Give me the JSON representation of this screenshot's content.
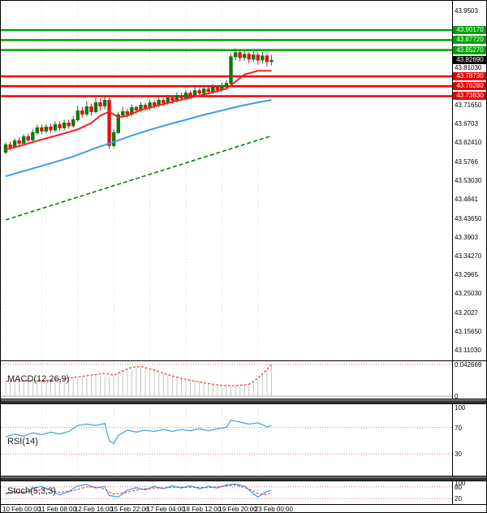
{
  "axis": {
    "price_ticks": [
      {
        "v": 43.9503,
        "label": "43.9503"
      },
      {
        "v": 43.8103,
        "label": "43.81030"
      },
      {
        "v": 43.7165,
        "label": "43.71650"
      },
      {
        "v": 43.6703,
        "label": "43.6703"
      },
      {
        "v": 43.6241,
        "label": "43.62410"
      },
      {
        "v": 43.5766,
        "label": "43.5766"
      },
      {
        "v": 43.5303,
        "label": "43.53030"
      },
      {
        "v": 43.4841,
        "label": "43.4841"
      },
      {
        "v": 43.4365,
        "label": "43.43650"
      },
      {
        "v": 43.3903,
        "label": "43.3903"
      },
      {
        "v": 43.3427,
        "label": "43.34270"
      },
      {
        "v": 43.2965,
        "label": "43.2965"
      },
      {
        "v": 43.2503,
        "label": "43.25030"
      },
      {
        "v": 43.2027,
        "label": "43.2027"
      },
      {
        "v": 43.1565,
        "label": "43.15650"
      },
      {
        "v": 43.1103,
        "label": "43.11030"
      }
    ],
    "date_labels": [
      "10 Feb 00:00",
      "11 Feb 08:00",
      "12 Feb 16:00",
      "15 Feb 22:06",
      "17 Feb 04:00",
      "18 Feb 12:00",
      "19 Feb 20:00",
      "23 Feb 00:00"
    ]
  },
  "levels": {
    "resistance": [
      {
        "v": 43.9017,
        "label": "43.90170"
      },
      {
        "v": 43.8772,
        "label": "43.87720"
      },
      {
        "v": 43.8527,
        "label": "43.85270"
      }
    ],
    "support": [
      {
        "v": 43.7873,
        "label": "43.78730"
      },
      {
        "v": 43.7628,
        "label": "43.76280"
      },
      {
        "v": 43.7383,
        "label": "43.73830"
      }
    ],
    "current_price": {
      "v": 43.8269,
      "label": "43.82690"
    }
  },
  "chart_data": {
    "type": "candlestick",
    "title": "",
    "price_range": {
      "min": 43.1103,
      "max": 43.9503
    },
    "x_labels": [
      "10 Feb 00:00",
      "11 Feb 08:00",
      "12 Feb 16:00",
      "15 Feb 22:06",
      "17 Feb 04:00",
      "18 Feb 12:00",
      "19 Feb 20:00",
      "23 Feb 00:00"
    ],
    "candles": [
      [
        43.6,
        43.624,
        43.594,
        43.618
      ],
      [
        43.618,
        43.626,
        43.604,
        43.612
      ],
      [
        43.612,
        43.634,
        43.608,
        43.628
      ],
      [
        43.628,
        43.636,
        43.616,
        43.622
      ],
      [
        43.622,
        43.645,
        43.618,
        43.638
      ],
      [
        43.638,
        43.646,
        43.624,
        43.63
      ],
      [
        43.63,
        43.656,
        43.626,
        43.648
      ],
      [
        43.648,
        43.668,
        43.642,
        43.66
      ],
      [
        43.66,
        43.668,
        43.644,
        43.652
      ],
      [
        43.652,
        43.67,
        43.646,
        43.662
      ],
      [
        43.662,
        43.67,
        43.648,
        43.655
      ],
      [
        43.655,
        43.676,
        43.65,
        43.668
      ],
      [
        43.668,
        43.676,
        43.652,
        43.66
      ],
      [
        43.66,
        43.68,
        43.654,
        43.672
      ],
      [
        43.672,
        43.68,
        43.658,
        43.665
      ],
      [
        43.665,
        43.69,
        43.66,
        43.68
      ],
      [
        43.68,
        43.715,
        43.675,
        43.702
      ],
      [
        43.702,
        43.712,
        43.685,
        43.694
      ],
      [
        43.694,
        43.726,
        43.688,
        43.712
      ],
      [
        43.712,
        43.72,
        43.69,
        43.7
      ],
      [
        43.7,
        43.734,
        43.695,
        43.722
      ],
      [
        43.722,
        43.732,
        43.702,
        43.714
      ],
      [
        43.714,
        43.736,
        43.706,
        43.728
      ],
      [
        43.728,
        43.734,
        43.608,
        43.616
      ],
      [
        43.616,
        43.656,
        43.61,
        43.648
      ],
      [
        43.648,
        43.7,
        43.644,
        43.692
      ],
      [
        43.692,
        43.712,
        43.684,
        43.7
      ],
      [
        43.7,
        43.708,
        43.686,
        43.694
      ],
      [
        43.694,
        43.718,
        43.688,
        43.71
      ],
      [
        43.71,
        43.716,
        43.696,
        43.704
      ],
      [
        43.704,
        43.724,
        43.698,
        43.716
      ],
      [
        43.716,
        43.722,
        43.702,
        43.71
      ],
      [
        43.71,
        43.73,
        43.704,
        43.722
      ],
      [
        43.722,
        43.728,
        43.708,
        43.716
      ],
      [
        43.716,
        43.736,
        43.71,
        43.728
      ],
      [
        43.728,
        43.734,
        43.714,
        43.722
      ],
      [
        43.722,
        43.742,
        43.716,
        43.734
      ],
      [
        43.734,
        43.74,
        43.72,
        43.728
      ],
      [
        43.728,
        43.748,
        43.722,
        43.74
      ],
      [
        43.74,
        43.746,
        43.726,
        43.734
      ],
      [
        43.734,
        43.754,
        43.728,
        43.746
      ],
      [
        43.746,
        43.752,
        43.732,
        43.74
      ],
      [
        43.74,
        43.76,
        43.734,
        43.752
      ],
      [
        43.752,
        43.758,
        43.738,
        43.746
      ],
      [
        43.746,
        43.764,
        43.74,
        43.756
      ],
      [
        43.756,
        43.762,
        43.742,
        43.75
      ],
      [
        43.75,
        43.768,
        43.744,
        43.76
      ],
      [
        43.76,
        43.766,
        43.746,
        43.754
      ],
      [
        43.754,
        43.772,
        43.748,
        43.764
      ],
      [
        43.764,
        43.778,
        43.756,
        43.77
      ],
      [
        43.77,
        43.844,
        43.766,
        43.836
      ],
      [
        43.836,
        43.856,
        43.828,
        43.846
      ],
      [
        43.846,
        43.852,
        43.824,
        43.834
      ],
      [
        43.834,
        43.85,
        43.826,
        43.842
      ],
      [
        43.842,
        43.848,
        43.82,
        43.83
      ],
      [
        43.83,
        43.85,
        43.822,
        43.84
      ],
      [
        43.84,
        43.846,
        43.816,
        43.828
      ],
      [
        43.828,
        43.848,
        43.82,
        43.838
      ],
      [
        43.838,
        43.844,
        43.812,
        43.824
      ],
      [
        43.824,
        43.84,
        43.814,
        43.827
      ]
    ],
    "overlays": {
      "ma_fast": {
        "points": [
          [
            0,
            43.606
          ],
          [
            4,
            43.618
          ],
          [
            8,
            43.631
          ],
          [
            12,
            43.643
          ],
          [
            16,
            43.656
          ],
          [
            19,
            43.672
          ],
          [
            21,
            43.69
          ],
          [
            23,
            43.7
          ],
          [
            25,
            43.686
          ],
          [
            27,
            43.69
          ],
          [
            30,
            43.704
          ],
          [
            34,
            43.716
          ],
          [
            38,
            43.727
          ],
          [
            42,
            43.737
          ],
          [
            46,
            43.748
          ],
          [
            49,
            43.757
          ],
          [
            51,
            43.774
          ],
          [
            53,
            43.792
          ],
          [
            56,
            43.801
          ],
          [
            59,
            43.801
          ]
        ]
      },
      "ma_slow": {
        "points": [
          [
            0,
            43.54
          ],
          [
            5,
            43.556
          ],
          [
            10,
            43.572
          ],
          [
            15,
            43.589
          ],
          [
            20,
            43.61
          ],
          [
            25,
            43.629
          ],
          [
            28,
            43.641
          ],
          [
            32,
            43.655
          ],
          [
            36,
            43.668
          ],
          [
            40,
            43.68
          ],
          [
            44,
            43.692
          ],
          [
            48,
            43.703
          ],
          [
            52,
            43.714
          ],
          [
            56,
            43.723
          ],
          [
            59,
            43.729
          ]
        ]
      },
      "trendline": {
        "points": [
          [
            0,
            43.432
          ],
          [
            59,
            43.64
          ]
        ]
      }
    },
    "indicators": {
      "macd": {
        "label": "MACD(12,26,9)",
        "top_label": "0.042669",
        "bottom_label": "0",
        "range": {
          "min": 0,
          "max": 0.0427
        },
        "signal_points": [
          [
            0,
            0.02
          ],
          [
            4,
            0.0205
          ],
          [
            8,
            0.021
          ],
          [
            12,
            0.0225
          ],
          [
            16,
            0.026
          ],
          [
            20,
            0.029
          ],
          [
            22,
            0.031
          ],
          [
            24,
            0.028
          ],
          [
            26,
            0.034
          ],
          [
            28,
            0.039
          ],
          [
            30,
            0.04
          ],
          [
            33,
            0.035
          ],
          [
            36,
            0.029
          ],
          [
            39,
            0.024
          ],
          [
            42,
            0.02
          ],
          [
            45,
            0.017
          ],
          [
            48,
            0.0145
          ],
          [
            51,
            0.014
          ],
          [
            54,
            0.016
          ],
          [
            56,
            0.024
          ],
          [
            58,
            0.036
          ],
          [
            59,
            0.0425
          ]
        ],
        "hist_points": [
          [
            0,
            0.019
          ],
          [
            5,
            0.02
          ],
          [
            10,
            0.021
          ],
          [
            15,
            0.024
          ],
          [
            20,
            0.028
          ],
          [
            23,
            0.026
          ],
          [
            27,
            0.036
          ],
          [
            30,
            0.039
          ],
          [
            34,
            0.032
          ],
          [
            38,
            0.026
          ],
          [
            42,
            0.021
          ],
          [
            46,
            0.016
          ],
          [
            50,
            0.0135
          ],
          [
            53,
            0.015
          ],
          [
            56,
            0.022
          ],
          [
            59,
            0.041
          ]
        ]
      },
      "rsi": {
        "label": "RSI(14)",
        "ticks": [
          100,
          70,
          30
        ],
        "range": {
          "min": 0,
          "max": 100
        },
        "points": [
          [
            0,
            56
          ],
          [
            2,
            60
          ],
          [
            4,
            57
          ],
          [
            6,
            62
          ],
          [
            8,
            59
          ],
          [
            10,
            63
          ],
          [
            12,
            60
          ],
          [
            14,
            64
          ],
          [
            16,
            73
          ],
          [
            18,
            75
          ],
          [
            20,
            73
          ],
          [
            22,
            76
          ],
          [
            23,
            50
          ],
          [
            24,
            46
          ],
          [
            25,
            58
          ],
          [
            27,
            66
          ],
          [
            29,
            63
          ],
          [
            31,
            66
          ],
          [
            33,
            64
          ],
          [
            35,
            67
          ],
          [
            37,
            64
          ],
          [
            39,
            67
          ],
          [
            41,
            65
          ],
          [
            43,
            68
          ],
          [
            45,
            65
          ],
          [
            47,
            68
          ],
          [
            49,
            70
          ],
          [
            50,
            81
          ],
          [
            52,
            78
          ],
          [
            54,
            75
          ],
          [
            56,
            77
          ],
          [
            58,
            71
          ],
          [
            59,
            73
          ]
        ]
      },
      "stoch": {
        "label": "Stoch(5,3,3)",
        "ticks": [
          100,
          80,
          20
        ],
        "range": {
          "min": 0,
          "max": 100
        },
        "k_points": [
          [
            0,
            42
          ],
          [
            2,
            58
          ],
          [
            4,
            46
          ],
          [
            6,
            72
          ],
          [
            8,
            82
          ],
          [
            10,
            62
          ],
          [
            12,
            38
          ],
          [
            14,
            56
          ],
          [
            16,
            86
          ],
          [
            18,
            92
          ],
          [
            20,
            74
          ],
          [
            22,
            82
          ],
          [
            23,
            36
          ],
          [
            25,
            28
          ],
          [
            27,
            62
          ],
          [
            29,
            76
          ],
          [
            31,
            64
          ],
          [
            33,
            82
          ],
          [
            35,
            70
          ],
          [
            37,
            86
          ],
          [
            39,
            74
          ],
          [
            41,
            86
          ],
          [
            43,
            70
          ],
          [
            45,
            82
          ],
          [
            47,
            74
          ],
          [
            49,
            90
          ],
          [
            51,
            94
          ],
          [
            53,
            84
          ],
          [
            55,
            44
          ],
          [
            56,
            28
          ],
          [
            57,
            42
          ],
          [
            58,
            56
          ],
          [
            59,
            62
          ]
        ],
        "d_points": [
          [
            0,
            48
          ],
          [
            3,
            52
          ],
          [
            6,
            58
          ],
          [
            9,
            68
          ],
          [
            12,
            52
          ],
          [
            15,
            60
          ],
          [
            18,
            80
          ],
          [
            21,
            78
          ],
          [
            24,
            42
          ],
          [
            27,
            52
          ],
          [
            30,
            68
          ],
          [
            33,
            74
          ],
          [
            36,
            76
          ],
          [
            39,
            78
          ],
          [
            42,
            78
          ],
          [
            45,
            76
          ],
          [
            48,
            82
          ],
          [
            51,
            90
          ],
          [
            54,
            70
          ],
          [
            56,
            44
          ],
          [
            58,
            40
          ],
          [
            59,
            52
          ]
        ]
      }
    }
  },
  "colors": {
    "grid": "#d6d6d6",
    "bull": "#117711",
    "bear": "#e01212",
    "resistance": "#00a300",
    "resistance_box": "#00a300",
    "support": "#f20000",
    "support_box": "#e60000",
    "current_box": "#000000",
    "ma_fast": "#f52020",
    "ma_slow": "#3c9ce8",
    "trend": "#0c7a0c",
    "macd_signal": "#e23c3c",
    "macd_hist": "#c6c6c6",
    "rsi": "#49a8e0",
    "stoch_k": "#3c9ce8",
    "stoch_d": "#e23c3c",
    "level_dotted": "#d48080"
  }
}
